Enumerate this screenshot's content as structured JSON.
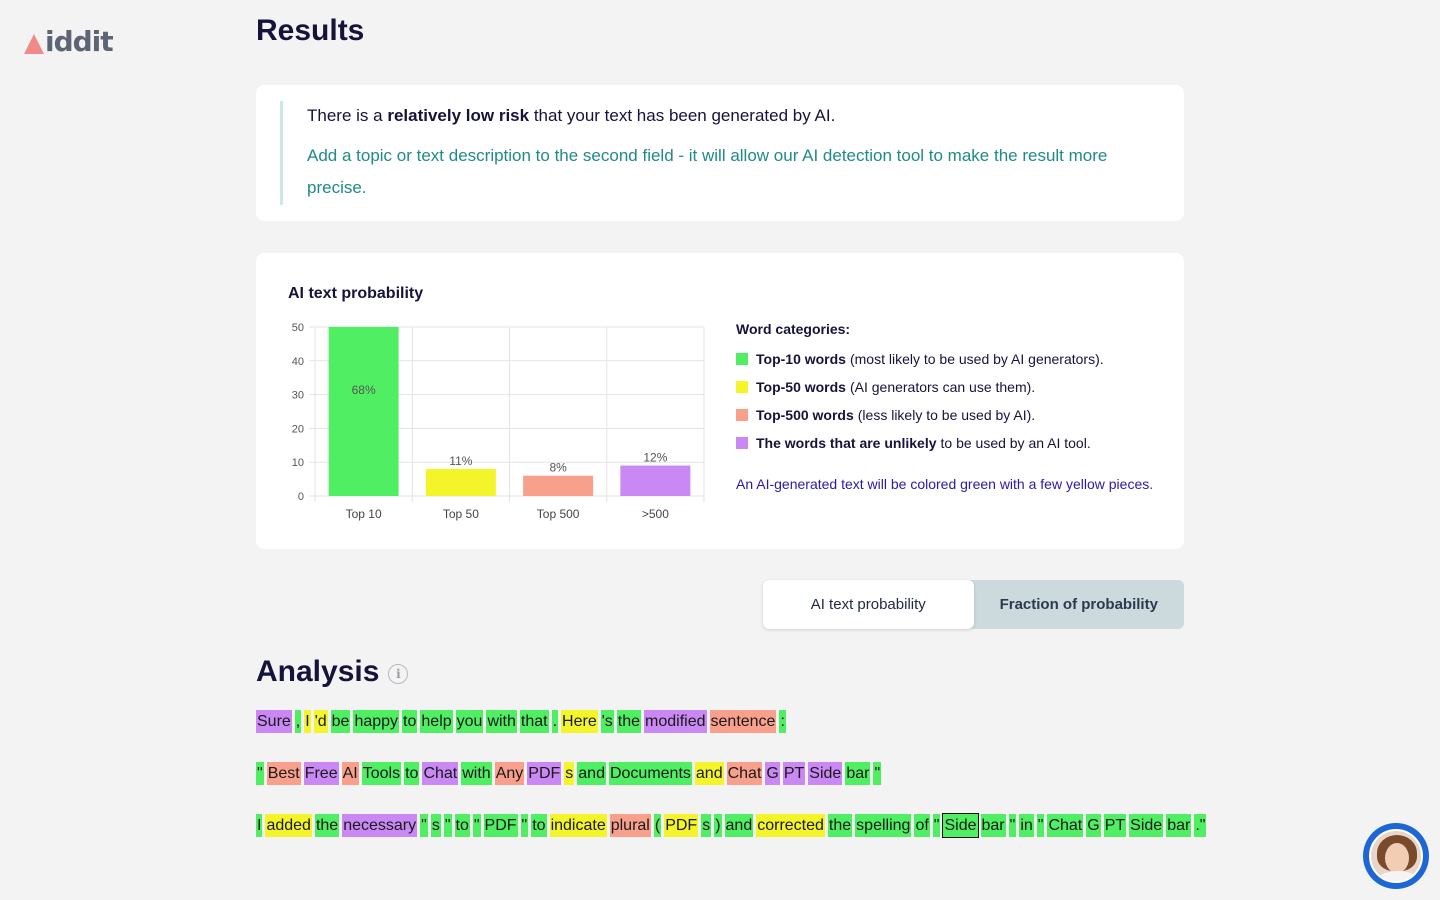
{
  "logo": {
    "text": "iddit"
  },
  "page_title": "Results",
  "result": {
    "prefix": "There is a",
    "emphasis": "relatively low risk",
    "suffix": "that your text has been generated by AI.",
    "hint": "Add a topic or text description to the second field - it will allow our AI detection tool to make the result more precise."
  },
  "chart_data": {
    "type": "bar",
    "title": "AI text probability",
    "categories": [
      "Top 10",
      "Top 50",
      "Top 500",
      ">500"
    ],
    "values": [
      50,
      8,
      6,
      9
    ],
    "data_labels": [
      "68%",
      "11%",
      "8%",
      "12%"
    ],
    "colors": [
      "#50ee62",
      "#f3f42a",
      "#f9a08d",
      "#c988f3"
    ],
    "ylim": [
      0,
      50
    ],
    "yticks": [
      0,
      10,
      20,
      30,
      40,
      50
    ],
    "grid": true
  },
  "legend": {
    "title": "Word categories:",
    "items": [
      {
        "bold": "Top-10 words",
        "text": "(most likely to be used by AI generators).",
        "color": "#50ee62"
      },
      {
        "bold": "Top-50 words",
        "text": "(AI generators can use them).",
        "color": "#f3f42a"
      },
      {
        "bold": "Top-500 words",
        "text": "(less likely to be used by AI).",
        "color": "#f9a08d"
      },
      {
        "bold": "The words that are unlikely",
        "text": "to be used by an AI tool.",
        "color": "#c988f3"
      }
    ],
    "note": "An AI-generated text will be colored green with a few yellow pieces."
  },
  "tabs": [
    {
      "label": "AI text probability",
      "active": true
    },
    {
      "label": "Fraction of probability",
      "active": false
    }
  ],
  "analysis": {
    "title": "Analysis",
    "info_icon": "info-icon",
    "paragraphs": [
      [
        [
          "Sure",
          4
        ],
        [
          ",",
          1
        ],
        [
          "I",
          2
        ],
        [
          "'d",
          2
        ],
        [
          "be",
          1
        ],
        [
          "happy",
          1
        ],
        [
          "to",
          1
        ],
        [
          "help",
          1
        ],
        [
          "you",
          1
        ],
        [
          "with",
          1
        ],
        [
          "that",
          1
        ],
        [
          ".",
          1
        ],
        [
          "Here",
          2
        ],
        [
          "'s",
          1
        ],
        [
          "the",
          1
        ],
        [
          "modified",
          4
        ],
        [
          "sentence",
          3
        ],
        [
          ":",
          1
        ]
      ],
      [
        [
          "\"",
          1
        ],
        [
          "Best",
          3
        ],
        [
          "Free",
          4
        ],
        [
          "AI",
          3
        ],
        [
          "Tools",
          1
        ],
        [
          "to",
          1
        ],
        [
          "Chat",
          4
        ],
        [
          "with",
          1
        ],
        [
          "Any",
          3
        ],
        [
          "PDF",
          4
        ],
        [
          "s",
          2
        ],
        [
          "and",
          1
        ],
        [
          "Documents",
          1
        ],
        [
          "and",
          2
        ],
        [
          "Chat",
          3
        ],
        [
          "G",
          4
        ],
        [
          "PT",
          4
        ],
        [
          "Side",
          4
        ],
        [
          "bar",
          1
        ],
        [
          "\"",
          1
        ]
      ],
      [
        [
          "I",
          1
        ],
        [
          "added",
          2
        ],
        [
          "the",
          1
        ],
        [
          "necessary",
          4
        ],
        [
          "\"",
          1
        ],
        [
          "s",
          1
        ],
        [
          "\"",
          1
        ],
        [
          "to",
          1
        ],
        [
          "\"",
          1
        ],
        [
          "PDF",
          1
        ],
        [
          "\"",
          1
        ],
        [
          "to",
          1
        ],
        [
          "indicate",
          2
        ],
        [
          "plural",
          3
        ],
        [
          "(",
          1
        ],
        [
          "PDF",
          2
        ],
        [
          "s",
          1
        ],
        [
          ")",
          1
        ],
        [
          "and",
          1
        ],
        [
          "corrected",
          2
        ],
        [
          "the",
          1
        ],
        [
          "spelling",
          1
        ],
        [
          "of",
          1
        ],
        [
          "\"",
          1
        ],
        [
          "Side",
          1,
          true
        ],
        [
          "bar",
          1
        ],
        [
          "\"",
          1
        ],
        [
          "in",
          1
        ],
        [
          "\"",
          1
        ],
        [
          "Chat",
          1
        ],
        [
          "G",
          1
        ],
        [
          "PT",
          1
        ],
        [
          "Side",
          1
        ],
        [
          "bar",
          1
        ],
        [
          ".\"",
          1
        ]
      ]
    ]
  }
}
